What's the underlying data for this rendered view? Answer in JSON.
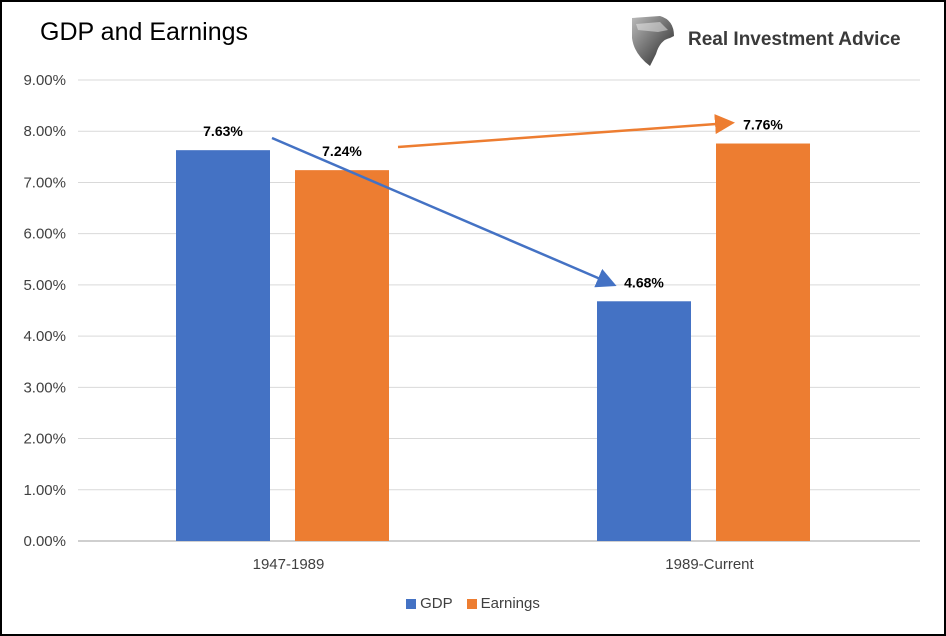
{
  "chart_data": {
    "type": "bar",
    "title": "GDP and Earnings",
    "categories": [
      "1947-1989",
      "1989-Current"
    ],
    "series": [
      {
        "name": "GDP",
        "values": [
          7.63,
          4.68
        ],
        "color": "#4472C4",
        "labels": [
          "7.63%",
          "4.68%"
        ]
      },
      {
        "name": "Earnings",
        "values": [
          7.24,
          7.76
        ],
        "color": "#ED7D31",
        "labels": [
          "7.24%",
          "7.76%"
        ]
      }
    ],
    "yticks": [
      "0.00%",
      "1.00%",
      "2.00%",
      "3.00%",
      "4.00%",
      "5.00%",
      "6.00%",
      "7.00%",
      "8.00%",
      "9.00%"
    ],
    "ylim": [
      0,
      9
    ],
    "grid": true,
    "legend": "bottom-center",
    "xlabel": "",
    "ylabel": ""
  },
  "logo": {
    "text": "Real Investment Advice"
  }
}
